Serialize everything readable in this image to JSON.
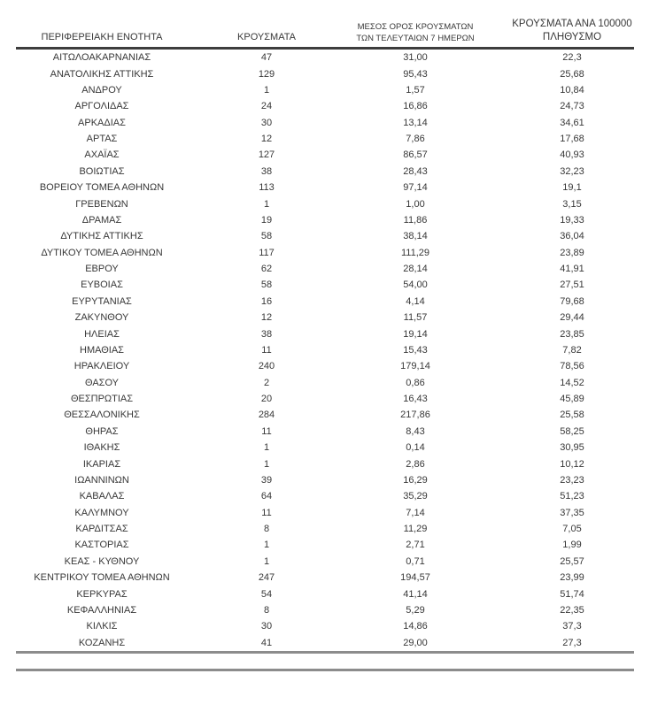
{
  "document": {
    "background_color": "#ffffff",
    "text_color": "#383838",
    "header_rule_color": "#3d3d3d",
    "footer_rule_color": "#8c8c8c"
  },
  "table": {
    "columns": [
      {
        "id": "region",
        "header_lines": [
          "ΠΕΡΙΦΕΡΕΙΑΚΗ ΕΝΟΤΗΤΑ"
        ]
      },
      {
        "id": "cases",
        "header_lines": [
          "ΚΡΟΥΣΜΑΤΑ"
        ]
      },
      {
        "id": "avg7",
        "header_lines": [
          "ΜΕΣΟΣ ΟΡΟΣ ΚΡΟΥΣΜΑΤΩΝ",
          "ΤΩΝ ΤΕΛΕΥΤΑΙΩΝ 7 ΗΜΕΡΩΝ"
        ]
      },
      {
        "id": "per100k",
        "header_lines": [
          "ΚΡΟΥΣΜΑΤΑ ΑΝΑ 100000",
          "ΠΛΗΘΥΣΜΟ"
        ]
      }
    ],
    "rows": [
      [
        "ΑΙΤΩΛΟΑΚΑΡΝΑΝΙΑΣ",
        "47",
        "31,00",
        "22,3"
      ],
      [
        "ΑΝΑΤΟΛΙΚΗΣ ΑΤΤΙΚΗΣ",
        "129",
        "95,43",
        "25,68"
      ],
      [
        "ΑΝΔΡΟΥ",
        "1",
        "1,57",
        "10,84"
      ],
      [
        "ΑΡΓΟΛΙΔΑΣ",
        "24",
        "16,86",
        "24,73"
      ],
      [
        "ΑΡΚΑΔΙΑΣ",
        "30",
        "13,14",
        "34,61"
      ],
      [
        "ΑΡΤΑΣ",
        "12",
        "7,86",
        "17,68"
      ],
      [
        "ΑΧΑΪΑΣ",
        "127",
        "86,57",
        "40,93"
      ],
      [
        "ΒΟΙΩΤΙΑΣ",
        "38",
        "28,43",
        "32,23"
      ],
      [
        "ΒΟΡΕΙΟΥ ΤΟΜΕΑ ΑΘΗΝΩΝ",
        "113",
        "97,14",
        "19,1"
      ],
      [
        "ΓΡΕΒΕΝΩΝ",
        "1",
        "1,00",
        "3,15"
      ],
      [
        "ΔΡΑΜΑΣ",
        "19",
        "11,86",
        "19,33"
      ],
      [
        "ΔΥΤΙΚΗΣ ΑΤΤΙΚΗΣ",
        "58",
        "38,14",
        "36,04"
      ],
      [
        "ΔΥΤΙΚΟΥ ΤΟΜΕΑ ΑΘΗΝΩΝ",
        "117",
        "111,29",
        "23,89"
      ],
      [
        "ΕΒΡΟΥ",
        "62",
        "28,14",
        "41,91"
      ],
      [
        "ΕΥΒΟΙΑΣ",
        "58",
        "54,00",
        "27,51"
      ],
      [
        "ΕΥΡΥΤΑΝΙΑΣ",
        "16",
        "4,14",
        "79,68"
      ],
      [
        "ΖΑΚΥΝΘΟΥ",
        "12",
        "11,57",
        "29,44"
      ],
      [
        "ΗΛΕΙΑΣ",
        "38",
        "19,14",
        "23,85"
      ],
      [
        "ΗΜΑΘΙΑΣ",
        "11",
        "15,43",
        "7,82"
      ],
      [
        "ΗΡΑΚΛΕΙΟΥ",
        "240",
        "179,14",
        "78,56"
      ],
      [
        "ΘΑΣΟΥ",
        "2",
        "0,86",
        "14,52"
      ],
      [
        "ΘΕΣΠΡΩΤΙΑΣ",
        "20",
        "16,43",
        "45,89"
      ],
      [
        "ΘΕΣΣΑΛΟΝΙΚΗΣ",
        "284",
        "217,86",
        "25,58"
      ],
      [
        "ΘΗΡΑΣ",
        "11",
        "8,43",
        "58,25"
      ],
      [
        "ΙΘΑΚΗΣ",
        "1",
        "0,14",
        "30,95"
      ],
      [
        "ΙΚΑΡΙΑΣ",
        "1",
        "2,86",
        "10,12"
      ],
      [
        "ΙΩΑΝΝΙΝΩΝ",
        "39",
        "16,29",
        "23,23"
      ],
      [
        "ΚΑΒΑΛΑΣ",
        "64",
        "35,29",
        "51,23"
      ],
      [
        "ΚΑΛΥΜΝΟΥ",
        "11",
        "7,14",
        "37,35"
      ],
      [
        "ΚΑΡΔΙΤΣΑΣ",
        "8",
        "11,29",
        "7,05"
      ],
      [
        "ΚΑΣΤΟΡΙΑΣ",
        "1",
        "2,71",
        "1,99"
      ],
      [
        "ΚΕΑΣ - ΚΥΘΝΟΥ",
        "1",
        "0,71",
        "25,57"
      ],
      [
        "ΚΕΝΤΡΙΚΟΥ ΤΟΜΕΑ ΑΘΗΝΩΝ",
        "247",
        "194,57",
        "23,99"
      ],
      [
        "ΚΕΡΚΥΡΑΣ",
        "54",
        "41,14",
        "51,74"
      ],
      [
        "ΚΕΦΑΛΛΗΝΙΑΣ",
        "8",
        "5,29",
        "22,35"
      ],
      [
        "ΚΙΛΚΙΣ",
        "30",
        "14,86",
        "37,3"
      ],
      [
        "ΚΟΖΑΝΗΣ",
        "41",
        "29,00",
        "27,3"
      ]
    ]
  }
}
